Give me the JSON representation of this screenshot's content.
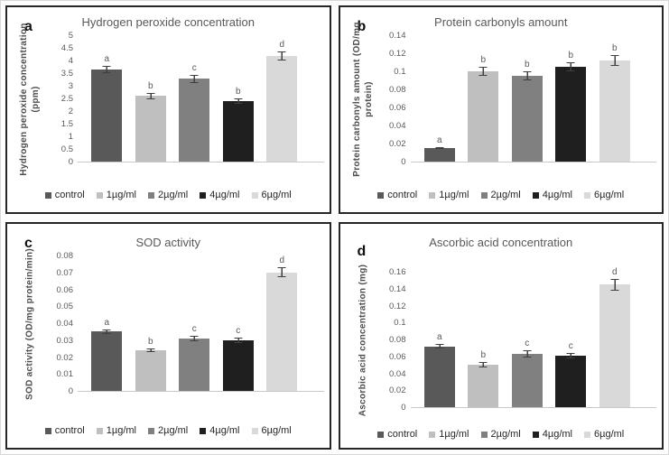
{
  "chart_data": [
    {
      "type": "bar",
      "panel": "a",
      "title": "Hydrogen peroxide concentration",
      "ylabel": "Hydrogen peroxide concentration\n(ppm)",
      "xlabel": "",
      "ylim": [
        0,
        5
      ],
      "yticks": [
        "5",
        "4.5",
        "4",
        "3.5",
        "3",
        "2.5",
        "2",
        "1.5",
        "1",
        "0.5",
        "0"
      ],
      "categories": [
        "control",
        "1µg/ml",
        "2µg/ml",
        "4µg/ml",
        "6µg/ml"
      ],
      "values": [
        3.65,
        2.6,
        3.27,
        2.4,
        4.18
      ],
      "errors": [
        0.15,
        0.12,
        0.15,
        0.1,
        0.18
      ],
      "sig_letters": [
        "a",
        "b",
        "c",
        "b",
        "d"
      ],
      "bar_colors": [
        "#595959",
        "#bfbfbf",
        "#808080",
        "#1f1f1f",
        "#d9d9d9"
      ],
      "grid": false,
      "legend_position": "bottom"
    },
    {
      "type": "bar",
      "panel": "b",
      "title": "Protein carbonyls amount",
      "ylabel": "Protein carbonyls amount (OD/mg\nprotein)",
      "xlabel": "",
      "ylim": [
        0,
        0.14
      ],
      "yticks": [
        "0.14",
        "0.12",
        "0.1",
        "0.08",
        "0.06",
        "0.04",
        "0.02",
        "0"
      ],
      "categories": [
        "control",
        "1µg/ml",
        "2µg/ml",
        "4µg/ml",
        "6µg/ml"
      ],
      "values": [
        0.015,
        0.1,
        0.095,
        0.105,
        0.112
      ],
      "errors": [
        0.001,
        0.005,
        0.005,
        0.005,
        0.006
      ],
      "sig_letters": [
        "a",
        "b",
        "b",
        "b",
        "b"
      ],
      "bar_colors": [
        "#595959",
        "#bfbfbf",
        "#808080",
        "#1f1f1f",
        "#d9d9d9"
      ],
      "grid": false,
      "legend_position": "bottom"
    },
    {
      "type": "bar",
      "panel": "c",
      "title": "SOD activity",
      "ylabel": "SOD activity (OD/mg protein/min)",
      "xlabel": "",
      "ylim": [
        0,
        0.08
      ],
      "yticks": [
        "0.08",
        "0.07",
        "0.06",
        "0.05",
        "0.04",
        "0.03",
        "0.02",
        "0.01",
        "0"
      ],
      "categories": [
        "control",
        "1µg/ml",
        "2µg/ml",
        "4µg/ml",
        "6µg/ml"
      ],
      "values": [
        0.035,
        0.024,
        0.031,
        0.03,
        0.07
      ],
      "errors": [
        0.0015,
        0.0012,
        0.0015,
        0.0015,
        0.003
      ],
      "sig_letters": [
        "a",
        "b",
        "c",
        "c",
        "d"
      ],
      "bar_colors": [
        "#595959",
        "#bfbfbf",
        "#808080",
        "#1f1f1f",
        "#d9d9d9"
      ],
      "grid": false,
      "legend_position": "bottom"
    },
    {
      "type": "bar",
      "panel": "d",
      "title": "Ascorbic acid concentration",
      "ylabel": "Ascorbic acid concentration (mg)",
      "xlabel": "",
      "ylim": [
        0,
        0.16
      ],
      "yticks": [
        "0.16",
        "0.14",
        "0.12",
        "0.1",
        "0.08",
        "0.06",
        "0.04",
        "0.02",
        "0"
      ],
      "categories": [
        "control",
        "1µg/ml",
        "2µg/ml",
        "4µg/ml",
        "6µg/ml"
      ],
      "values": [
        0.072,
        0.05,
        0.063,
        0.061,
        0.145
      ],
      "errors": [
        0.003,
        0.003,
        0.004,
        0.003,
        0.007
      ],
      "sig_letters": [
        "a",
        "b",
        "c",
        "c",
        "d"
      ],
      "bar_colors": [
        "#595959",
        "#bfbfbf",
        "#808080",
        "#1f1f1f",
        "#d9d9d9"
      ],
      "grid": false,
      "legend_position": "bottom"
    }
  ]
}
